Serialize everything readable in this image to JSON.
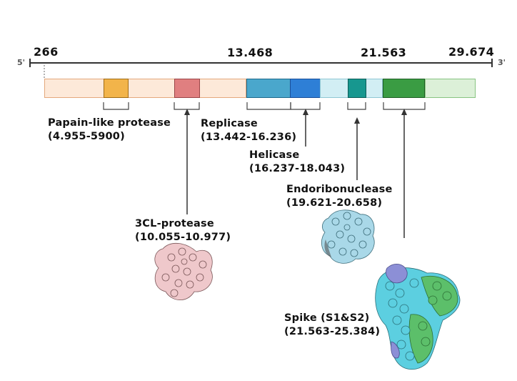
{
  "genome": {
    "five_prime": "5'",
    "three_prime": "3'",
    "coords": [
      "266",
      "13.468",
      "21.563",
      "29.674"
    ]
  },
  "proteins": {
    "papain": {
      "name": "Papain-like protease",
      "range": "(4.955-5900)",
      "color": "#f2b44a"
    },
    "cl3": {
      "name": "3CL-protease",
      "range": "(10.055-10.977)",
      "color": "#e07f80"
    },
    "replicase": {
      "name": "Replicase",
      "range": "(13.442-16.236)",
      "color": "#4aa7cc"
    },
    "helicase": {
      "name": "Helicase",
      "range": "(16.237-18.043)",
      "color": "#2e7fd6"
    },
    "endoribonuclease": {
      "name": "Endoribonuclease",
      "range": "(19.621-20.658)",
      "color": "#17978f"
    },
    "spike": {
      "name": "Spike (S1&S2)",
      "range": "(21.563-25.384)",
      "color": "#3a9c43"
    }
  }
}
